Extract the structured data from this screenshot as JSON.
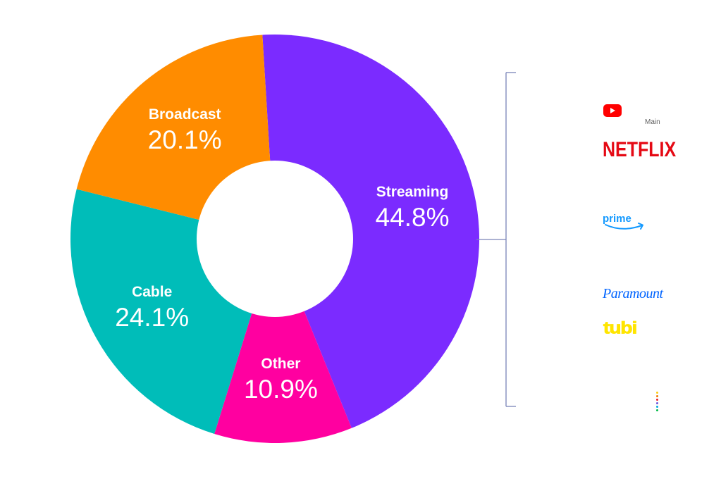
{
  "chart_data": {
    "type": "donut",
    "segments": [
      {
        "name": "Streaming",
        "value": 44.8,
        "label": "44.8%",
        "color": "#7B2BFF"
      },
      {
        "name": "Other",
        "value": 10.9,
        "label": "10.9%",
        "color": "#FF00A0"
      },
      {
        "name": "Cable",
        "value": 24.1,
        "label": "24.1%",
        "color": "#00BDB9"
      },
      {
        "name": "Broadcast",
        "value": 20.1,
        "label": "20.1%",
        "color": "#FF8C00"
      }
    ],
    "start_angle_deg": -3.5,
    "direction": "clockwise"
  },
  "bracket_color": "#7A84B8",
  "logos": {
    "youtube": {
      "icon": "youtube-play-icon",
      "color": "#FF0000"
    },
    "main_label": "Main",
    "netflix": {
      "text": "NETFLIX",
      "color": "#E50914"
    },
    "prime": {
      "text": "prime",
      "color": "#1399FF"
    },
    "paramount": {
      "text": "Paramount",
      "color": "#0064FF"
    },
    "tubi": {
      "text": "tubi",
      "color": "#FFE500"
    },
    "peacock": {
      "icon": "peacock-dots-icon",
      "colors": [
        "#FCCC12",
        "#F07D00",
        "#EA1C2C",
        "#6E55DC",
        "#05A9E0",
        "#00B946"
      ]
    }
  }
}
